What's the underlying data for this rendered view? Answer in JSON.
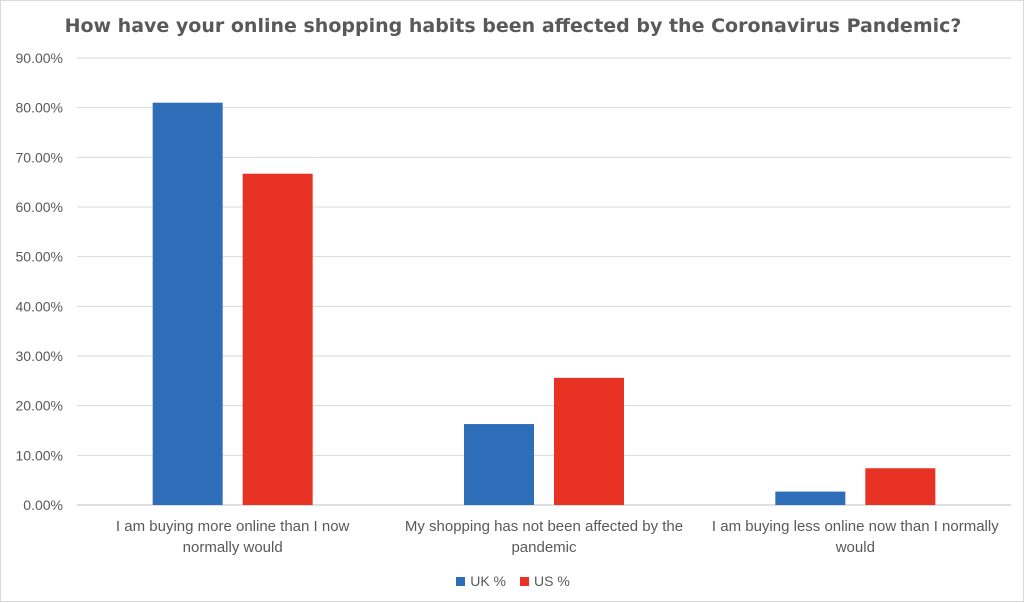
{
  "chart_data": {
    "type": "bar",
    "title": "How have your online shopping habits been affected by the Coronavirus Pandemic?",
    "xlabel": "",
    "ylabel": "",
    "categories": [
      [
        "I am buying more online than I now",
        "normally would"
      ],
      [
        "My shopping has not been affected by the",
        "pandemic"
      ],
      [
        "I am buying less online now than I normally",
        "would"
      ]
    ],
    "series": [
      {
        "name": "UK %",
        "color": "#2E6DB8",
        "values": [
          81.0,
          16.3,
          2.7
        ]
      },
      {
        "name": "US %",
        "color": "#E83223",
        "values": [
          66.7,
          25.6,
          7.4
        ]
      }
    ],
    "ylim": [
      0,
      90
    ],
    "yticks": [
      "0.00%",
      "10.00%",
      "20.00%",
      "30.00%",
      "40.00%",
      "50.00%",
      "60.00%",
      "70.00%",
      "80.00%",
      "90.00%"
    ],
    "grid": true,
    "legend_position": "bottom"
  }
}
